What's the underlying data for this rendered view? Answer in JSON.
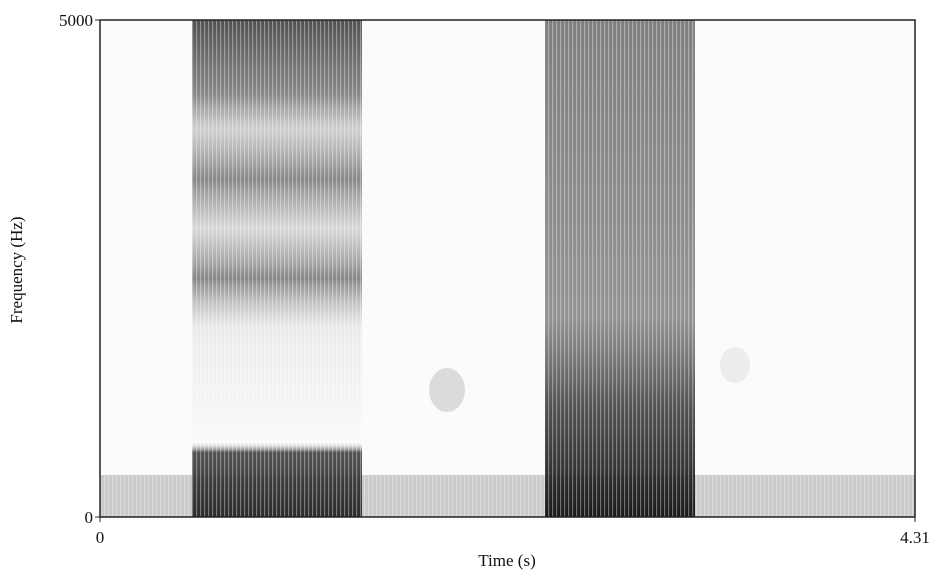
{
  "chart_data": {
    "type": "spectrogram",
    "x_label": "Time (s)",
    "y_label": "Frequency (Hz)",
    "xlim": [
      0,
      4.31
    ],
    "xticks": [
      0,
      4.31
    ],
    "ylim": [
      0,
      5000
    ],
    "yticks": [
      0,
      5000
    ]
  }
}
